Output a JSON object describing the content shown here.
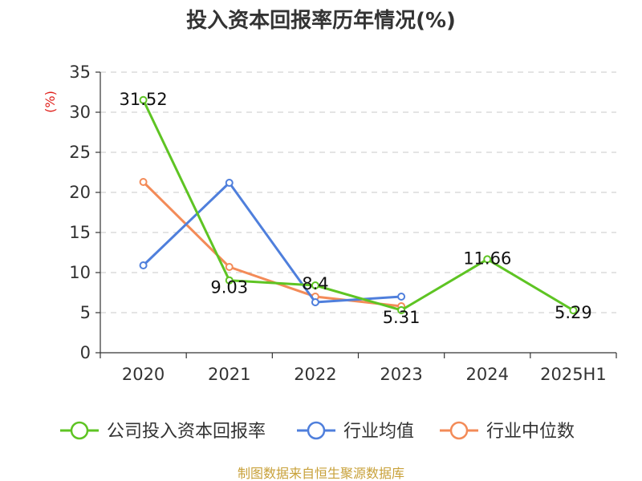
{
  "chart_data": {
    "type": "line",
    "title": "投入资本回报率历年情况(%)",
    "ylabel": "(%)",
    "xlabel": "",
    "categories": [
      "2020",
      "2021",
      "2022",
      "2023",
      "2024",
      "2025H1"
    ],
    "ylim": [
      0,
      35
    ],
    "yticks": [
      0,
      5,
      10,
      15,
      20,
      25,
      30,
      35
    ],
    "grid": "horizontal-dashed",
    "legend_position": "bottom",
    "series": [
      {
        "name": "公司投入资本回报率",
        "color": "#5ec423",
        "values": [
          31.52,
          9.03,
          8.4,
          5.31,
          11.66,
          5.29
        ],
        "labels": [
          "31.52",
          "9.03",
          "8.4",
          "5.31",
          "11.66",
          "5.29"
        ]
      },
      {
        "name": "行业均值",
        "color": "#4f7fdc",
        "values": [
          10.9,
          21.2,
          6.3,
          7.0,
          null,
          null
        ]
      },
      {
        "name": "行业中位数",
        "color": "#f38b58",
        "values": [
          21.3,
          10.7,
          7.0,
          5.8,
          null,
          null
        ]
      }
    ],
    "source": "制图数据来自恒生聚源数据库"
  }
}
